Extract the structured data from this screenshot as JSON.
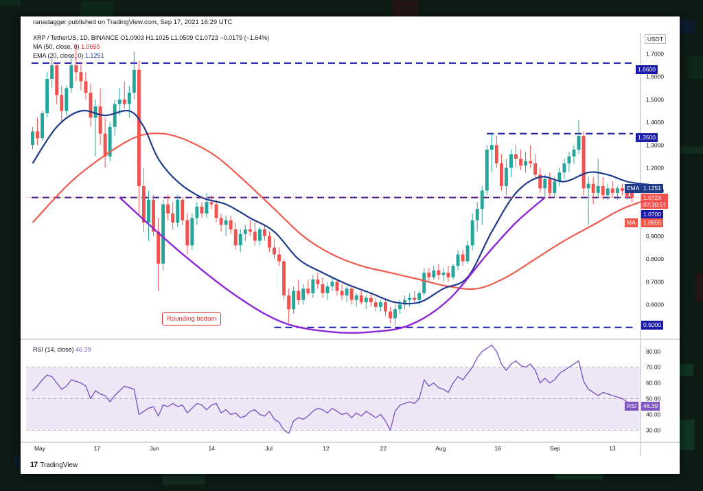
{
  "page": {
    "published": "ranadagger published on TradingView.com, Sep 17, 2021 16:29 UTC",
    "unit": "USDT",
    "brand": "TradingView",
    "brand_logo": "17"
  },
  "legend": {
    "symbol": "XRP / TetherUS, 1D, BINANCE",
    "ohlc": "O1.0903 H1.1025 L1.0509 C1.0723 −0.0179 (−1.64%)",
    "ma_label": "MA (50, close, 0)",
    "ma_value": "1.0655",
    "ema_label": "EMA (20, close, 0)",
    "ema_value": "1.1251",
    "rsi_label": "RSI (14, close)",
    "rsi_value": "46.39"
  },
  "annotation": "Rounding bottom",
  "colors": {
    "up": "#26a69a",
    "down": "#ef5350",
    "ema": "#1e3a8a",
    "ma": "#ef5a4c",
    "curve": "#8e24d8",
    "levels": "#1a1aa8",
    "rsi": "#7e57c2",
    "rsi_band": "#ede7f6"
  },
  "price_labels": {
    "res_top": "1.6600",
    "res_mid": "1.3500",
    "ema": "EMA",
    "ema_value": "1.1251",
    "last": "1.0723",
    "countdown": "07:30:57",
    "support_mid": "1.0700",
    "ma": "MA",
    "ma_value": "1.0655",
    "support_low": "0.5000",
    "rsi": "RSI",
    "rsi_value": "46.39"
  },
  "chart_data": {
    "type": "candlestick",
    "x_ticks": [
      "May",
      "17",
      "Jun",
      "14",
      "Jul",
      "12",
      "22",
      "Aug",
      "16",
      "Sep",
      "13"
    ],
    "y_ticks": [
      "1.7000",
      "1.6000",
      "1.5000",
      "1.4000",
      "1.3000",
      "1.2000",
      "1.1000",
      "0.9000",
      "0.8000",
      "0.7000",
      "0.6000"
    ],
    "y_range": [
      0.46,
      1.78
    ],
    "levels": [
      1.66,
      1.35,
      1.07,
      0.5
    ],
    "candles": [
      [
        1.3,
        1.38,
        1.28,
        1.36
      ],
      [
        1.36,
        1.42,
        1.3,
        1.33
      ],
      [
        1.33,
        1.45,
        1.32,
        1.44
      ],
      [
        1.44,
        1.62,
        1.42,
        1.59
      ],
      [
        1.59,
        1.68,
        1.55,
        1.65
      ],
      [
        1.65,
        1.66,
        1.48,
        1.52
      ],
      [
        1.52,
        1.56,
        1.4,
        1.45
      ],
      [
        1.45,
        1.56,
        1.43,
        1.55
      ],
      [
        1.55,
        1.68,
        1.53,
        1.65
      ],
      [
        1.65,
        1.74,
        1.58,
        1.62
      ],
      [
        1.62,
        1.66,
        1.54,
        1.58
      ],
      [
        1.58,
        1.62,
        1.5,
        1.53
      ],
      [
        1.53,
        1.57,
        1.38,
        1.42
      ],
      [
        1.42,
        1.5,
        1.25,
        1.47
      ],
      [
        1.47,
        1.55,
        1.3,
        1.35
      ],
      [
        1.35,
        1.42,
        1.2,
        1.25
      ],
      [
        1.25,
        1.4,
        1.23,
        1.38
      ],
      [
        1.38,
        1.5,
        1.34,
        1.48
      ],
      [
        1.48,
        1.55,
        1.43,
        1.5
      ],
      [
        1.5,
        1.58,
        1.46,
        1.48
      ],
      [
        1.48,
        1.56,
        1.42,
        1.53
      ],
      [
        1.53,
        1.71,
        1.5,
        1.63
      ],
      [
        1.63,
        1.67,
        1.0,
        1.12
      ],
      [
        1.12,
        1.2,
        0.92,
        0.96
      ],
      [
        0.96,
        1.1,
        0.88,
        1.06
      ],
      [
        1.06,
        1.08,
        0.9,
        0.92
      ],
      [
        0.92,
        0.98,
        0.66,
        0.78
      ],
      [
        0.78,
        1.06,
        0.75,
        1.04
      ],
      [
        1.04,
        1.08,
        0.97,
        1.0
      ],
      [
        1.0,
        1.05,
        0.93,
        0.96
      ],
      [
        0.96,
        1.08,
        0.94,
        1.06
      ],
      [
        1.06,
        1.07,
        0.95,
        0.97
      ],
      [
        0.97,
        1.0,
        0.82,
        0.86
      ],
      [
        0.86,
        1.0,
        0.84,
        0.98
      ],
      [
        0.98,
        1.05,
        0.95,
        1.03
      ],
      [
        1.03,
        1.05,
        0.98,
        1.0
      ],
      [
        1.0,
        1.09,
        0.98,
        1.05
      ],
      [
        1.05,
        1.08,
        1.02,
        1.04
      ],
      [
        1.04,
        1.06,
        0.96,
        0.98
      ],
      [
        0.98,
        1.0,
        0.92,
        0.95
      ],
      [
        0.95,
        0.99,
        0.9,
        0.97
      ],
      [
        0.97,
        0.99,
        0.91,
        0.93
      ],
      [
        0.93,
        0.96,
        0.84,
        0.86
      ],
      [
        0.86,
        0.93,
        0.83,
        0.91
      ],
      [
        0.91,
        0.95,
        0.88,
        0.93
      ],
      [
        0.93,
        0.97,
        0.9,
        0.92
      ],
      [
        0.92,
        0.96,
        0.86,
        0.88
      ],
      [
        0.88,
        0.94,
        0.86,
        0.93
      ],
      [
        0.93,
        0.95,
        0.88,
        0.9
      ],
      [
        0.9,
        0.92,
        0.83,
        0.85
      ],
      [
        0.85,
        0.89,
        0.8,
        0.82
      ],
      [
        0.82,
        0.85,
        0.77,
        0.79
      ],
      [
        0.79,
        0.8,
        0.62,
        0.64
      ],
      [
        0.64,
        0.67,
        0.52,
        0.58
      ],
      [
        0.58,
        0.68,
        0.56,
        0.66
      ],
      [
        0.66,
        0.71,
        0.6,
        0.62
      ],
      [
        0.62,
        0.69,
        0.6,
        0.67
      ],
      [
        0.67,
        0.71,
        0.64,
        0.65
      ],
      [
        0.65,
        0.73,
        0.63,
        0.71
      ],
      [
        0.71,
        0.74,
        0.67,
        0.69
      ],
      [
        0.69,
        0.72,
        0.63,
        0.65
      ],
      [
        0.65,
        0.7,
        0.62,
        0.68
      ],
      [
        0.68,
        0.72,
        0.66,
        0.7
      ],
      [
        0.7,
        0.71,
        0.64,
        0.66
      ],
      [
        0.66,
        0.69,
        0.62,
        0.64
      ],
      [
        0.64,
        0.68,
        0.61,
        0.67
      ],
      [
        0.67,
        0.68,
        0.6,
        0.62
      ],
      [
        0.62,
        0.65,
        0.59,
        0.64
      ],
      [
        0.64,
        0.66,
        0.6,
        0.61
      ],
      [
        0.61,
        0.64,
        0.58,
        0.63
      ],
      [
        0.63,
        0.65,
        0.59,
        0.61
      ],
      [
        0.61,
        0.63,
        0.57,
        0.59
      ],
      [
        0.59,
        0.62,
        0.57,
        0.61
      ],
      [
        0.61,
        0.63,
        0.55,
        0.57
      ],
      [
        0.57,
        0.59,
        0.52,
        0.54
      ],
      [
        0.54,
        0.6,
        0.51,
        0.58
      ],
      [
        0.58,
        0.62,
        0.56,
        0.6
      ],
      [
        0.6,
        0.64,
        0.58,
        0.62
      ],
      [
        0.62,
        0.65,
        0.59,
        0.63
      ],
      [
        0.63,
        0.66,
        0.61,
        0.62
      ],
      [
        0.62,
        0.66,
        0.6,
        0.65
      ],
      [
        0.65,
        0.76,
        0.64,
        0.74
      ],
      [
        0.74,
        0.76,
        0.7,
        0.72
      ],
      [
        0.72,
        0.77,
        0.71,
        0.75
      ],
      [
        0.75,
        0.78,
        0.71,
        0.73
      ],
      [
        0.73,
        0.76,
        0.7,
        0.74
      ],
      [
        0.74,
        0.77,
        0.7,
        0.72
      ],
      [
        0.72,
        0.78,
        0.71,
        0.77
      ],
      [
        0.77,
        0.84,
        0.75,
        0.82
      ],
      [
        0.82,
        0.84,
        0.77,
        0.79
      ],
      [
        0.79,
        0.88,
        0.78,
        0.86
      ],
      [
        0.86,
        1.0,
        0.84,
        0.97
      ],
      [
        0.97,
        1.05,
        0.92,
        1.02
      ],
      [
        1.02,
        1.12,
        0.95,
        1.1
      ],
      [
        1.1,
        1.3,
        1.08,
        1.28
      ],
      [
        1.28,
        1.35,
        1.18,
        1.3
      ],
      [
        1.3,
        1.34,
        1.2,
        1.22
      ],
      [
        1.22,
        1.26,
        1.1,
        1.12
      ],
      [
        1.12,
        1.24,
        1.08,
        1.2
      ],
      [
        1.2,
        1.28,
        1.16,
        1.26
      ],
      [
        1.26,
        1.3,
        1.2,
        1.24
      ],
      [
        1.24,
        1.28,
        1.19,
        1.21
      ],
      [
        1.21,
        1.27,
        1.18,
        1.23
      ],
      [
        1.23,
        1.3,
        1.2,
        1.22
      ],
      [
        1.22,
        1.26,
        1.15,
        1.17
      ],
      [
        1.17,
        1.2,
        1.09,
        1.11
      ],
      [
        1.11,
        1.17,
        1.07,
        1.15
      ],
      [
        1.15,
        1.18,
        1.07,
        1.09
      ],
      [
        1.09,
        1.16,
        1.07,
        1.14
      ],
      [
        1.14,
        1.2,
        1.12,
        1.18
      ],
      [
        1.18,
        1.24,
        1.15,
        1.22
      ],
      [
        1.22,
        1.27,
        1.18,
        1.25
      ],
      [
        1.25,
        1.3,
        1.22,
        1.28
      ],
      [
        1.28,
        1.41,
        1.26,
        1.34
      ],
      [
        1.34,
        1.36,
        1.08,
        1.11
      ],
      [
        1.11,
        1.16,
        0.95,
        1.13
      ],
      [
        1.13,
        1.16,
        1.04,
        1.09
      ],
      [
        1.09,
        1.24,
        1.07,
        1.12
      ],
      [
        1.12,
        1.16,
        1.06,
        1.08
      ],
      [
        1.08,
        1.13,
        1.06,
        1.11
      ],
      [
        1.11,
        1.14,
        1.07,
        1.09
      ],
      [
        1.09,
        1.12,
        1.06,
        1.11
      ],
      [
        1.11,
        1.13,
        1.08,
        1.1
      ],
      [
        1.1,
        1.12,
        1.06,
        1.07
      ],
      [
        1.09,
        1.1,
        1.05,
        1.07
      ]
    ],
    "ema20": [
      [
        0,
        1.22
      ],
      [
        5,
        1.38
      ],
      [
        10,
        1.45
      ],
      [
        15,
        1.43
      ],
      [
        20,
        1.45
      ],
      [
        23,
        1.38
      ],
      [
        26,
        1.24
      ],
      [
        30,
        1.14
      ],
      [
        35,
        1.07
      ],
      [
        40,
        1.04
      ],
      [
        45,
        0.98
      ],
      [
        50,
        0.92
      ],
      [
        55,
        0.8
      ],
      [
        60,
        0.74
      ],
      [
        65,
        0.69
      ],
      [
        70,
        0.65
      ],
      [
        75,
        0.61
      ],
      [
        80,
        0.61
      ],
      [
        85,
        0.67
      ],
      [
        90,
        0.72
      ],
      [
        95,
        0.92
      ],
      [
        100,
        1.09
      ],
      [
        105,
        1.16
      ],
      [
        110,
        1.14
      ],
      [
        115,
        1.18
      ],
      [
        119,
        1.17
      ],
      [
        123,
        1.14
      ],
      [
        128,
        1.125
      ]
    ],
    "ma50": [
      [
        0,
        0.96
      ],
      [
        8,
        1.14
      ],
      [
        16,
        1.27
      ],
      [
        22,
        1.34
      ],
      [
        27,
        1.35
      ],
      [
        32,
        1.32
      ],
      [
        38,
        1.25
      ],
      [
        44,
        1.14
      ],
      [
        50,
        1.02
      ],
      [
        56,
        0.9
      ],
      [
        62,
        0.82
      ],
      [
        68,
        0.77
      ],
      [
        74,
        0.74
      ],
      [
        80,
        0.71
      ],
      [
        86,
        0.68
      ],
      [
        92,
        0.67
      ],
      [
        98,
        0.72
      ],
      [
        104,
        0.8
      ],
      [
        110,
        0.88
      ],
      [
        116,
        0.95
      ],
      [
        122,
        1.02
      ],
      [
        128,
        1.066
      ]
    ],
    "curve": [
      [
        18,
        1.07
      ],
      [
        30,
        0.84
      ],
      [
        42,
        0.64
      ],
      [
        52,
        0.52
      ],
      [
        62,
        0.48
      ],
      [
        70,
        0.48
      ],
      [
        78,
        0.51
      ],
      [
        86,
        0.62
      ],
      [
        94,
        0.82
      ],
      [
        100,
        0.96
      ],
      [
        106,
        1.07
      ]
    ],
    "rsi": {
      "ticks": [
        "80.00",
        "70.00",
        "60.00",
        "50.00",
        "40.00",
        "30.00"
      ],
      "range": [
        25,
        86
      ],
      "levels": [
        70,
        50,
        30
      ],
      "values": [
        55,
        58,
        62,
        65,
        64,
        60,
        56,
        58,
        62,
        61,
        60,
        58,
        50,
        55,
        53,
        52,
        48,
        52,
        55,
        58,
        57,
        56,
        40,
        42,
        44,
        45,
        39,
        46,
        45,
        47,
        45,
        46,
        41,
        44,
        47,
        46,
        43,
        46,
        47,
        41,
        43,
        40,
        41,
        38,
        39,
        42,
        43,
        40,
        39,
        42,
        37,
        35,
        30,
        28,
        36,
        38,
        37,
        39,
        42,
        44,
        43,
        41,
        44,
        42,
        40,
        41,
        38,
        41,
        39,
        42,
        40,
        38,
        40,
        36,
        30,
        42,
        46,
        47,
        48,
        47,
        50,
        62,
        58,
        60,
        57,
        56,
        54,
        60,
        64,
        62,
        66,
        70,
        76,
        80,
        82,
        84,
        80,
        72,
        68,
        72,
        74,
        71,
        70,
        72,
        68,
        60,
        63,
        60,
        62,
        66,
        68,
        70,
        72,
        74,
        61,
        56,
        54,
        52,
        54,
        53,
        52,
        51,
        50,
        48,
        46
      ]
    }
  }
}
